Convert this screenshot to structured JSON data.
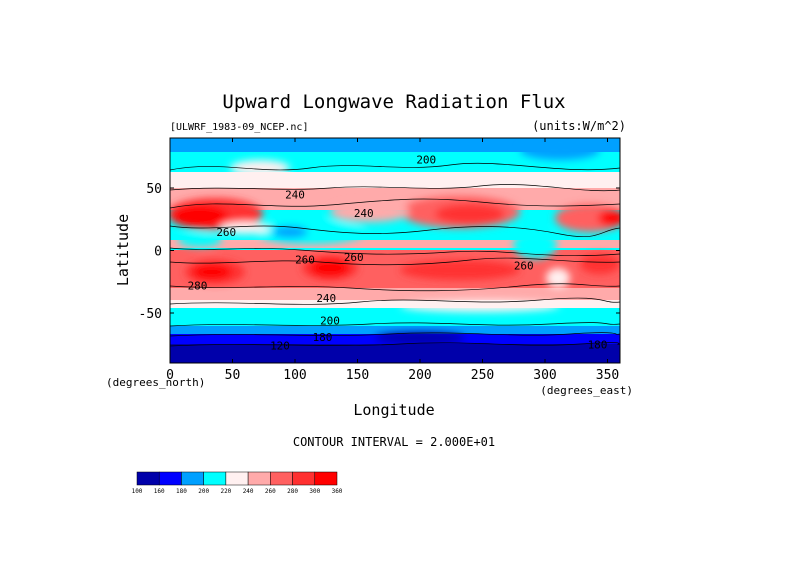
{
  "chart_data": {
    "type": "heatmap",
    "title": "Upward Longwave Radiation Flux",
    "subtitle_left": "[ULWRF_1983-09_NCEP.nc]",
    "subtitle_right": "(units:W/m^2)",
    "xlabel": "Longitude",
    "ylabel": "Latitude",
    "x_unit_label": "(degrees_east)",
    "y_unit_label": "(degrees_north)",
    "xlim": [
      0,
      360
    ],
    "ylim": [
      -90,
      90
    ],
    "x_ticks": [
      0,
      50,
      100,
      150,
      200,
      250,
      300,
      350
    ],
    "y_ticks": [
      -50,
      0,
      50
    ],
    "contour_interval_text": "CONTOUR INTERVAL = 2.000E+01",
    "levels": [
      100,
      160,
      180,
      200,
      220,
      240,
      260,
      280,
      300,
      360
    ],
    "colors": [
      "#0000aa",
      "#0000ff",
      "#00a0ff",
      "#00ffff",
      "#fff0f0",
      "#ffaaaa",
      "#ff6060",
      "#ff3030",
      "#ff0000"
    ],
    "contour_labels": [
      {
        "lon": 205,
        "lat": 73,
        "text": "200"
      },
      {
        "lon": 100,
        "lat": 45,
        "text": "240"
      },
      {
        "lon": 155,
        "lat": 30,
        "text": "240"
      },
      {
        "lon": 45,
        "lat": 15,
        "text": "260"
      },
      {
        "lon": 108,
        "lat": -7,
        "text": "260"
      },
      {
        "lon": 147,
        "lat": -5,
        "text": "260"
      },
      {
        "lon": 283,
        "lat": -12,
        "text": "260"
      },
      {
        "lon": 22,
        "lat": -28,
        "text": "280"
      },
      {
        "lon": 125,
        "lat": -38,
        "text": "240"
      },
      {
        "lon": 128,
        "lat": -56,
        "text": "200"
      },
      {
        "lon": 122,
        "lat": -69,
        "text": "180"
      },
      {
        "lon": 88,
        "lat": -76,
        "text": "120"
      },
      {
        "lon": 342,
        "lat": -75,
        "text": "180"
      }
    ]
  }
}
